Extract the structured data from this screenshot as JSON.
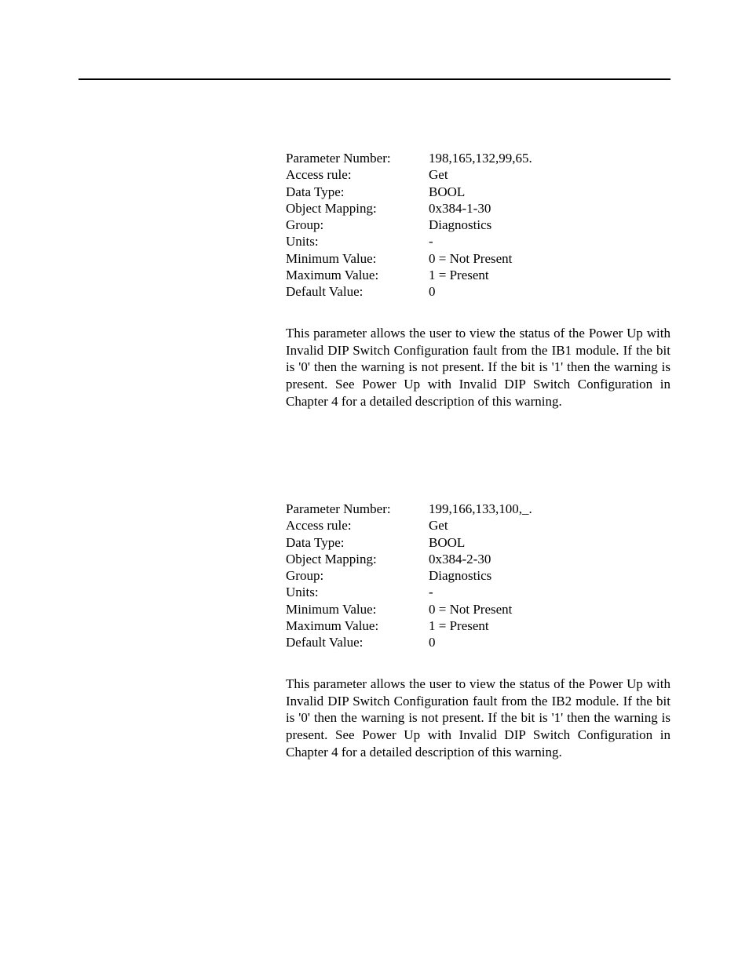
{
  "section1": {
    "params": {
      "parameter_number_label": "Parameter Number:",
      "parameter_number_value": "198,165,132,99,65.",
      "access_rule_label": "Access rule:",
      "access_rule_value": "Get",
      "data_type_label": "Data Type:",
      "data_type_value": "BOOL",
      "object_mapping_label": "Object Mapping:",
      "object_mapping_value": "0x384-1-30",
      "group_label": "Group:",
      "group_value": "Diagnostics",
      "units_label": "Units:",
      "units_value": "-",
      "minimum_value_label": "Minimum Value:",
      "minimum_value_value": "0 = Not Present",
      "maximum_value_label": "Maximum Value:",
      "maximum_value_value": "1 = Present",
      "default_value_label": "Default Value:",
      "default_value_value": "0"
    },
    "description": "This parameter allows the user to view the status of the Power Up with Invalid DIP Switch Configuration fault from the IB1 module.  If the bit is '0' then the warning is not present.  If the bit is '1' then the warning is present.   See Power Up with Invalid DIP Switch Configuration in Chapter 4 for a detailed description of this warning."
  },
  "section2": {
    "params": {
      "parameter_number_label": "Parameter Number:",
      "parameter_number_value": "199,166,133,100,_.",
      "access_rule_label": "Access rule:",
      "access_rule_value": "Get",
      "data_type_label": "Data Type:",
      "data_type_value": "BOOL",
      "object_mapping_label": "Object Mapping:",
      "object_mapping_value": "0x384-2-30",
      "group_label": "Group:",
      "group_value": "Diagnostics",
      "units_label": "Units:",
      "units_value": "-",
      "minimum_value_label": "Minimum Value:",
      "minimum_value_value": "0 = Not Present",
      "maximum_value_label": "Maximum Value:",
      "maximum_value_value": "1 = Present",
      "default_value_label": "Default Value:",
      "default_value_value": "0"
    },
    "description": "This parameter allows the user to view the status of the Power Up with Invalid DIP Switch Configuration fault from the IB2 module.  If the bit is '0' then the warning is not present.  If the bit is '1' then the warning is present.   See Power Up with Invalid DIP Switch Configuration in Chapter 4 for a detailed description of this warning."
  }
}
